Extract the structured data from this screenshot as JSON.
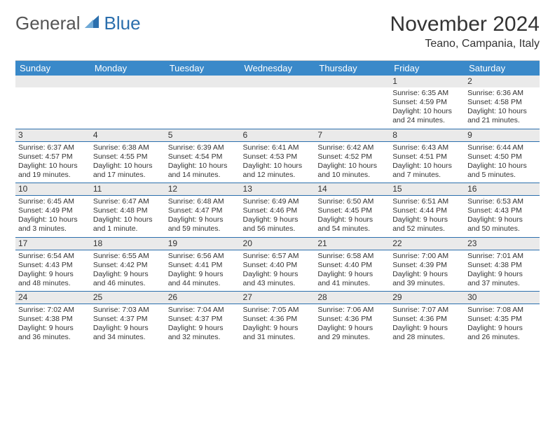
{
  "brand": {
    "text1": "General",
    "text2": "Blue"
  },
  "title": "November 2024",
  "location": "Teano, Campania, Italy",
  "colors": {
    "header_bg": "#3a89c9",
    "header_text": "#ffffff",
    "daynum_bg": "#eaeaea",
    "rule": "#2b6fad",
    "body_text": "#333333",
    "logo_blue": "#2b6fad"
  },
  "day_headers": [
    "Sunday",
    "Monday",
    "Tuesday",
    "Wednesday",
    "Thursday",
    "Friday",
    "Saturday"
  ],
  "weeks": [
    [
      null,
      null,
      null,
      null,
      null,
      {
        "n": "1",
        "sunrise": "6:35 AM",
        "sunset": "4:59 PM",
        "daylight": "10 hours and 24 minutes."
      },
      {
        "n": "2",
        "sunrise": "6:36 AM",
        "sunset": "4:58 PM",
        "daylight": "10 hours and 21 minutes."
      }
    ],
    [
      {
        "n": "3",
        "sunrise": "6:37 AM",
        "sunset": "4:57 PM",
        "daylight": "10 hours and 19 minutes."
      },
      {
        "n": "4",
        "sunrise": "6:38 AM",
        "sunset": "4:55 PM",
        "daylight": "10 hours and 17 minutes."
      },
      {
        "n": "5",
        "sunrise": "6:39 AM",
        "sunset": "4:54 PM",
        "daylight": "10 hours and 14 minutes."
      },
      {
        "n": "6",
        "sunrise": "6:41 AM",
        "sunset": "4:53 PM",
        "daylight": "10 hours and 12 minutes."
      },
      {
        "n": "7",
        "sunrise": "6:42 AM",
        "sunset": "4:52 PM",
        "daylight": "10 hours and 10 minutes."
      },
      {
        "n": "8",
        "sunrise": "6:43 AM",
        "sunset": "4:51 PM",
        "daylight": "10 hours and 7 minutes."
      },
      {
        "n": "9",
        "sunrise": "6:44 AM",
        "sunset": "4:50 PM",
        "daylight": "10 hours and 5 minutes."
      }
    ],
    [
      {
        "n": "10",
        "sunrise": "6:45 AM",
        "sunset": "4:49 PM",
        "daylight": "10 hours and 3 minutes."
      },
      {
        "n": "11",
        "sunrise": "6:47 AM",
        "sunset": "4:48 PM",
        "daylight": "10 hours and 1 minute."
      },
      {
        "n": "12",
        "sunrise": "6:48 AM",
        "sunset": "4:47 PM",
        "daylight": "9 hours and 59 minutes."
      },
      {
        "n": "13",
        "sunrise": "6:49 AM",
        "sunset": "4:46 PM",
        "daylight": "9 hours and 56 minutes."
      },
      {
        "n": "14",
        "sunrise": "6:50 AM",
        "sunset": "4:45 PM",
        "daylight": "9 hours and 54 minutes."
      },
      {
        "n": "15",
        "sunrise": "6:51 AM",
        "sunset": "4:44 PM",
        "daylight": "9 hours and 52 minutes."
      },
      {
        "n": "16",
        "sunrise": "6:53 AM",
        "sunset": "4:43 PM",
        "daylight": "9 hours and 50 minutes."
      }
    ],
    [
      {
        "n": "17",
        "sunrise": "6:54 AM",
        "sunset": "4:43 PM",
        "daylight": "9 hours and 48 minutes."
      },
      {
        "n": "18",
        "sunrise": "6:55 AM",
        "sunset": "4:42 PM",
        "daylight": "9 hours and 46 minutes."
      },
      {
        "n": "19",
        "sunrise": "6:56 AM",
        "sunset": "4:41 PM",
        "daylight": "9 hours and 44 minutes."
      },
      {
        "n": "20",
        "sunrise": "6:57 AM",
        "sunset": "4:40 PM",
        "daylight": "9 hours and 43 minutes."
      },
      {
        "n": "21",
        "sunrise": "6:58 AM",
        "sunset": "4:40 PM",
        "daylight": "9 hours and 41 minutes."
      },
      {
        "n": "22",
        "sunrise": "7:00 AM",
        "sunset": "4:39 PM",
        "daylight": "9 hours and 39 minutes."
      },
      {
        "n": "23",
        "sunrise": "7:01 AM",
        "sunset": "4:38 PM",
        "daylight": "9 hours and 37 minutes."
      }
    ],
    [
      {
        "n": "24",
        "sunrise": "7:02 AM",
        "sunset": "4:38 PM",
        "daylight": "9 hours and 36 minutes."
      },
      {
        "n": "25",
        "sunrise": "7:03 AM",
        "sunset": "4:37 PM",
        "daylight": "9 hours and 34 minutes."
      },
      {
        "n": "26",
        "sunrise": "7:04 AM",
        "sunset": "4:37 PM",
        "daylight": "9 hours and 32 minutes."
      },
      {
        "n": "27",
        "sunrise": "7:05 AM",
        "sunset": "4:36 PM",
        "daylight": "9 hours and 31 minutes."
      },
      {
        "n": "28",
        "sunrise": "7:06 AM",
        "sunset": "4:36 PM",
        "daylight": "9 hours and 29 minutes."
      },
      {
        "n": "29",
        "sunrise": "7:07 AM",
        "sunset": "4:36 PM",
        "daylight": "9 hours and 28 minutes."
      },
      {
        "n": "30",
        "sunrise": "7:08 AM",
        "sunset": "4:35 PM",
        "daylight": "9 hours and 26 minutes."
      }
    ]
  ],
  "labels": {
    "sunrise": "Sunrise: ",
    "sunset": "Sunset: ",
    "daylight": "Daylight: "
  }
}
